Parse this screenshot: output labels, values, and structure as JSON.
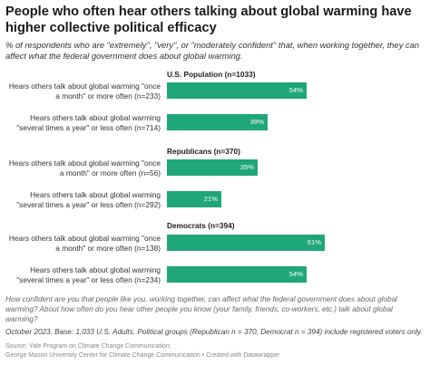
{
  "header": {
    "title": "People who often hear others talking about global warming have higher collective political efficacy",
    "subtitle": "% of respondents who are \"extremely\", \"very\", or \"moderately confident\" that, when working together, they can affect what the federal government does about global warming."
  },
  "chart_data": {
    "type": "bar",
    "orientation": "horizontal",
    "xlim": [
      0,
      100
    ],
    "value_suffix": "%",
    "bar_color": "#1fa67a",
    "groups": [
      {
        "title": "U.S. Population (n=1033)",
        "rows": [
          {
            "label": "Hears others talk about global warming \"once a month\" or more often (n=233)",
            "value": 54
          },
          {
            "label": "Hears others talk about global warming \"several times a year\" or less often (n=714)",
            "value": 39
          }
        ]
      },
      {
        "title": "Republicans (n=370)",
        "rows": [
          {
            "label": "Hears others talk about global warming \"once a month\" or more often (n=56)",
            "value": 35
          },
          {
            "label": "Hears others talk about global warming \"several times a year\" or less often (n=292)",
            "value": 21
          }
        ]
      },
      {
        "title": "Democrats (n=394)",
        "rows": [
          {
            "label": "Hears others talk about global warming \"once a month\" or more often (n=138)",
            "value": 61
          },
          {
            "label": "Hears others talk about global warming \"several times a year\" or less often (n=234)",
            "value": 54
          }
        ]
      }
    ]
  },
  "footer": {
    "question": "How confident are you that people like you, working together, can affect what the federal government does about global warming? About how often do you hear other people you know (your family, friends, co-workers, etc.) talk about global warming?",
    "note": "October 2023. Base: 1,033 U.S. Adults. Political groups (Republican n = 370, Democrat n = 394) include registered voters only.",
    "source_line1": "Source: Yale Program on Climate Change Communication;",
    "source_line2": "George Mason University Center for Climate Change Communication • Created with Datawrapper"
  }
}
